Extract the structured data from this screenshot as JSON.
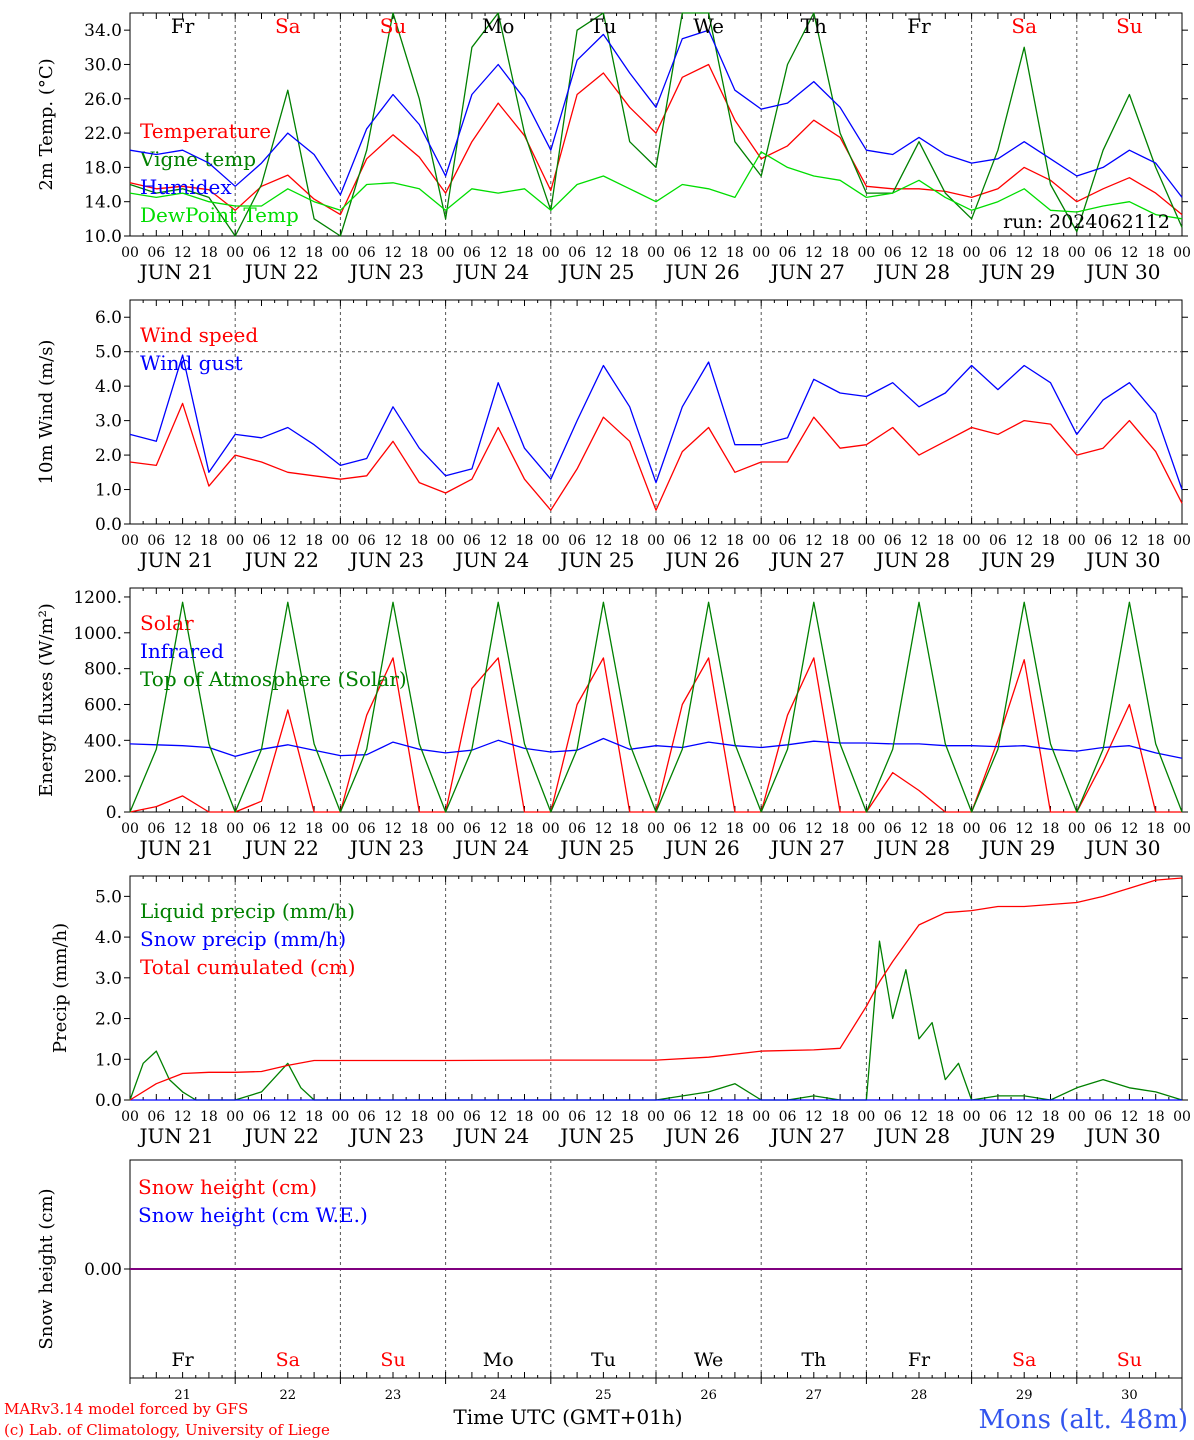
{
  "meta": {
    "run_label": "run: 2024062112",
    "credit_line1": "MARv3.14 model forced by GFS",
    "credit_line2": "(c) Lab. of Climatology, University of Liege",
    "time_axis_label": "Time UTC (GMT+01h)",
    "station": "Mons (alt. 48m)"
  },
  "colors": {
    "red": "#ff0000",
    "green": "#008000",
    "lightgreen": "#00dd00",
    "blue": "#0000ff",
    "purple": "#7f007f",
    "axis": "#000000"
  },
  "days": {
    "names": [
      "Fr",
      "Sa",
      "Su",
      "Mo",
      "Tu",
      "We",
      "Th",
      "Fr",
      "Sa",
      "Su"
    ],
    "weekend": [
      false,
      true,
      true,
      false,
      false,
      false,
      false,
      false,
      true,
      true
    ],
    "dates": [
      "JUN 21",
      "JUN 22",
      "JUN 23",
      "JUN 24",
      "JUN 25",
      "JUN 26",
      "JUN 27",
      "JUN 28",
      "JUN 29",
      "JUN 30"
    ],
    "numbers": [
      "21",
      "22",
      "23",
      "24",
      "25",
      "26",
      "27",
      "28",
      "29",
      "30"
    ],
    "hour_ticks": [
      "00",
      "06",
      "12",
      "18"
    ],
    "final_tick": "00"
  },
  "chart_data": [
    {
      "id": "temperature",
      "type": "line",
      "ylabel": "2m Temp. (°C)",
      "ylim": [
        10.0,
        36.0
      ],
      "yticks": [
        "10.0",
        "14.0",
        "18.0",
        "22.0",
        "26.0",
        "30.0",
        "34.0"
      ],
      "x_unit": "hours since 2024-06-21 00 UTC",
      "series": [
        {
          "name": "Temperature",
          "color": "#ff0000",
          "x": [
            0,
            6,
            12,
            18,
            24,
            30,
            36,
            42,
            48,
            54,
            60,
            66,
            72,
            78,
            84,
            90,
            96,
            102,
            108,
            114,
            120,
            126,
            132,
            138,
            144,
            150,
            156,
            162,
            168,
            174,
            180,
            186,
            192,
            198,
            204,
            210,
            216,
            222,
            228,
            234,
            240
          ],
          "y": [
            16.2,
            15.5,
            15.8,
            15.4,
            13.0,
            15.8,
            17.1,
            14.3,
            12.5,
            19.0,
            21.8,
            19.2,
            15.0,
            21.0,
            25.5,
            21.7,
            15.3,
            26.5,
            29.0,
            25.0,
            22.0,
            28.5,
            30.0,
            23.5,
            19.0,
            20.5,
            23.5,
            21.5,
            15.8,
            15.5,
            15.5,
            15.2,
            14.5,
            15.5,
            18.0,
            16.5,
            14.0,
            15.5,
            16.8,
            15.0,
            12.5
          ]
        },
        {
          "name": "Vigne temp",
          "color": "#008000",
          "x": [
            0,
            6,
            12,
            18,
            24,
            30,
            36,
            42,
            48,
            54,
            60,
            66,
            72,
            78,
            84,
            90,
            96,
            102,
            108,
            114,
            120,
            126,
            132,
            138,
            144,
            150,
            156,
            162,
            168,
            174,
            180,
            186,
            192,
            198,
            204,
            210,
            216,
            222,
            228,
            234,
            240
          ],
          "y": [
            16.0,
            15.0,
            15.5,
            14.5,
            10.0,
            16.0,
            27.0,
            12.0,
            10.0,
            20.0,
            36.0,
            26.0,
            12.0,
            32.0,
            36.0,
            22.0,
            13.0,
            34.0,
            36.0,
            21.0,
            18.0,
            36.0,
            36.0,
            21.0,
            17.0,
            30.0,
            36.0,
            22.0,
            15.0,
            15.0,
            21.0,
            15.0,
            12.0,
            20.0,
            32.0,
            16.0,
            10.5,
            20.0,
            26.5,
            18.0,
            11.0
          ]
        },
        {
          "name": "Humidex",
          "color": "#0000ff",
          "x": [
            0,
            6,
            12,
            18,
            24,
            30,
            36,
            42,
            48,
            54,
            60,
            66,
            72,
            78,
            84,
            90,
            96,
            102,
            108,
            114,
            120,
            126,
            132,
            138,
            144,
            150,
            156,
            162,
            168,
            174,
            180,
            186,
            192,
            198,
            204,
            210,
            216,
            222,
            228,
            234,
            240
          ],
          "y": [
            20.0,
            19.5,
            20.0,
            18.5,
            15.8,
            18.5,
            22.0,
            19.5,
            14.8,
            22.5,
            26.5,
            23.0,
            17.0,
            26.5,
            30.0,
            26.0,
            20.0,
            30.5,
            33.5,
            29.0,
            25.0,
            33.0,
            34.0,
            27.0,
            24.8,
            25.5,
            28.0,
            25.0,
            20.0,
            19.5,
            21.5,
            19.5,
            18.5,
            19.0,
            21.0,
            19.0,
            17.0,
            18.0,
            20.0,
            18.5,
            14.5
          ]
        },
        {
          "name": "DewPoint Temp",
          "color": "#00dd00",
          "x": [
            0,
            6,
            12,
            18,
            24,
            30,
            36,
            42,
            48,
            54,
            60,
            66,
            72,
            78,
            84,
            90,
            96,
            102,
            108,
            114,
            120,
            126,
            132,
            138,
            144,
            150,
            156,
            162,
            168,
            174,
            180,
            186,
            192,
            198,
            204,
            210,
            216,
            222,
            228,
            234,
            240
          ],
          "y": [
            15.0,
            14.5,
            15.0,
            14.0,
            13.5,
            13.5,
            15.5,
            14.0,
            13.0,
            16.0,
            16.2,
            15.5,
            13.0,
            15.5,
            15.0,
            15.5,
            13.0,
            16.0,
            17.0,
            15.5,
            14.0,
            16.0,
            15.5,
            14.5,
            19.8,
            18.0,
            17.0,
            16.5,
            14.5,
            15.0,
            16.5,
            14.5,
            13.0,
            14.0,
            15.5,
            13.0,
            12.8,
            13.5,
            14.0,
            12.5,
            12.0
          ]
        }
      ]
    },
    {
      "id": "wind",
      "type": "line",
      "ylabel": "10m Wind (m/s)",
      "ylim": [
        0.0,
        6.5
      ],
      "yticks": [
        "0.0",
        "1.0",
        "2.0",
        "3.0",
        "4.0",
        "5.0",
        "6.0"
      ],
      "x_unit": "hours since 2024-06-21 00 UTC",
      "series": [
        {
          "name": "Wind speed",
          "color": "#ff0000",
          "x": [
            0,
            6,
            12,
            18,
            24,
            30,
            36,
            42,
            48,
            54,
            60,
            66,
            72,
            78,
            84,
            90,
            96,
            102,
            108,
            114,
            120,
            126,
            132,
            138,
            144,
            150,
            156,
            162,
            168,
            174,
            180,
            186,
            192,
            198,
            204,
            210,
            216,
            222,
            228,
            234,
            240
          ],
          "y": [
            1.8,
            1.7,
            3.5,
            1.1,
            2.0,
            1.8,
            1.5,
            1.4,
            1.3,
            1.4,
            2.4,
            1.2,
            0.9,
            1.3,
            2.8,
            1.3,
            0.4,
            1.6,
            3.1,
            2.4,
            0.4,
            2.1,
            2.8,
            1.5,
            1.8,
            1.8,
            3.1,
            2.2,
            2.3,
            2.8,
            2.0,
            2.4,
            2.8,
            2.6,
            3.0,
            2.9,
            2.0,
            2.2,
            3.0,
            2.1,
            0.6
          ]
        },
        {
          "name": "Wind gust",
          "color": "#0000ff",
          "x": [
            0,
            6,
            12,
            18,
            24,
            30,
            36,
            42,
            48,
            54,
            60,
            66,
            72,
            78,
            84,
            90,
            96,
            102,
            108,
            114,
            120,
            126,
            132,
            138,
            144,
            150,
            156,
            162,
            168,
            174,
            180,
            186,
            192,
            198,
            204,
            210,
            216,
            222,
            228,
            234,
            240
          ],
          "y": [
            2.6,
            2.4,
            4.9,
            1.5,
            2.6,
            2.5,
            2.8,
            2.3,
            1.7,
            1.9,
            3.4,
            2.2,
            1.4,
            1.6,
            4.1,
            2.2,
            1.3,
            3.0,
            4.6,
            3.4,
            1.2,
            3.4,
            4.7,
            2.3,
            2.3,
            2.5,
            4.2,
            3.8,
            3.7,
            4.1,
            3.4,
            3.8,
            4.6,
            3.9,
            4.6,
            4.1,
            2.6,
            3.6,
            4.1,
            3.2,
            1.0
          ]
        }
      ]
    },
    {
      "id": "energy",
      "type": "line",
      "ylabel": "Energy fluxes (W/m²)",
      "ylim": [
        0,
        1250
      ],
      "yticks": [
        "0.",
        "200.",
        "400.",
        "600.",
        "800.",
        "1000.",
        "1200."
      ],
      "x_unit": "hours since 2024-06-21 00 UTC",
      "series": [
        {
          "name": "Solar",
          "color": "#ff0000",
          "x": [
            0,
            6,
            12,
            18,
            24,
            30,
            36,
            42,
            48,
            54,
            60,
            66,
            72,
            78,
            84,
            90,
            96,
            102,
            108,
            114,
            120,
            126,
            132,
            138,
            144,
            150,
            156,
            162,
            168,
            174,
            180,
            186,
            192,
            198,
            204,
            210,
            216,
            222,
            228,
            234,
            240
          ],
          "y": [
            0,
            30,
            90,
            0,
            0,
            60,
            570,
            0,
            0,
            540,
            860,
            0,
            0,
            690,
            860,
            0,
            0,
            600,
            860,
            0,
            0,
            600,
            860,
            0,
            0,
            540,
            860,
            0,
            0,
            220,
            120,
            0,
            0,
            400,
            850,
            0,
            0,
            280,
            600,
            0,
            0
          ]
        },
        {
          "name": "Infrared",
          "color": "#0000ff",
          "x": [
            0,
            6,
            12,
            18,
            24,
            30,
            36,
            42,
            48,
            54,
            60,
            66,
            72,
            78,
            84,
            90,
            96,
            102,
            108,
            114,
            120,
            126,
            132,
            138,
            144,
            150,
            156,
            162,
            168,
            174,
            180,
            186,
            192,
            198,
            204,
            210,
            216,
            222,
            228,
            234,
            240
          ],
          "y": [
            380,
            375,
            370,
            360,
            310,
            350,
            375,
            345,
            315,
            320,
            390,
            350,
            330,
            345,
            400,
            355,
            335,
            345,
            410,
            350,
            370,
            360,
            390,
            370,
            360,
            375,
            395,
            385,
            385,
            380,
            380,
            370,
            370,
            365,
            370,
            350,
            340,
            360,
            370,
            330,
            300
          ]
        },
        {
          "name": "Top of Atmosphere (Solar)",
          "color": "#008000",
          "x": [
            0,
            6,
            12,
            18,
            24,
            30,
            36,
            42,
            48,
            54,
            60,
            66,
            72,
            78,
            84,
            90,
            96,
            102,
            108,
            114,
            120,
            126,
            132,
            138,
            144,
            150,
            156,
            162,
            168,
            174,
            180,
            186,
            192,
            198,
            204,
            210,
            216,
            222,
            228,
            234,
            240
          ],
          "y": [
            0,
            350,
            1170,
            380,
            0,
            350,
            1170,
            380,
            0,
            350,
            1170,
            380,
            0,
            350,
            1170,
            380,
            0,
            350,
            1170,
            380,
            0,
            350,
            1170,
            380,
            0,
            350,
            1170,
            380,
            0,
            350,
            1170,
            380,
            0,
            350,
            1170,
            380,
            0,
            350,
            1170,
            380,
            0
          ]
        }
      ]
    },
    {
      "id": "precip",
      "type": "line",
      "ylabel": "Precip (mm/h)",
      "ylim": [
        0.0,
        5.5
      ],
      "yticks": [
        "0.0",
        "1.0",
        "2.0",
        "3.0",
        "4.0",
        "5.0"
      ],
      "x_unit": "hours since 2024-06-21 00 UTC",
      "series": [
        {
          "name": "Liquid precip (mm/h)",
          "color": "#008000",
          "x": [
            0,
            3,
            6,
            9,
            12,
            15,
            18,
            24,
            30,
            36,
            39,
            42,
            48,
            60,
            72,
            96,
            120,
            132,
            138,
            144,
            150,
            156,
            162,
            168,
            171,
            174,
            177,
            180,
            183,
            186,
            189,
            192,
            198,
            204,
            210,
            216,
            222,
            228,
            234,
            240
          ],
          "y": [
            0,
            0.9,
            1.2,
            0.5,
            0.2,
            0,
            0,
            0,
            0.2,
            0.9,
            0.3,
            0,
            0,
            0,
            0,
            0,
            0,
            0.2,
            0.4,
            0,
            0,
            0.1,
            0,
            0,
            3.9,
            2.0,
            3.2,
            1.5,
            1.9,
            0.5,
            0.9,
            0,
            0.1,
            0.1,
            0,
            0.3,
            0.5,
            0.3,
            0.2,
            0
          ]
        },
        {
          "name": "Snow precip (mm/h)",
          "color": "#0000ff",
          "x": [
            0,
            240
          ],
          "y": [
            0,
            0
          ]
        },
        {
          "name": "Total cumulated (cm)",
          "color": "#ff0000",
          "x": [
            0,
            6,
            12,
            18,
            24,
            30,
            36,
            42,
            48,
            72,
            96,
            120,
            132,
            144,
            156,
            162,
            168,
            171,
            174,
            180,
            186,
            192,
            198,
            204,
            216,
            222,
            228,
            234,
            240
          ],
          "y": [
            0,
            0.4,
            0.65,
            0.68,
            0.68,
            0.7,
            0.85,
            0.97,
            0.97,
            0.97,
            0.98,
            0.98,
            1.05,
            1.2,
            1.23,
            1.27,
            2.3,
            2.9,
            3.4,
            4.3,
            4.6,
            4.65,
            4.75,
            4.75,
            4.85,
            5.0,
            5.2,
            5.4,
            5.45
          ]
        }
      ]
    },
    {
      "id": "snow",
      "type": "line",
      "ylabel": "Snow height (cm)",
      "ylim": [
        -1,
        1
      ],
      "yticks": [
        "0.00"
      ],
      "x_unit": "hours since 2024-06-21 00 UTC",
      "series": [
        {
          "name": "Snow height (cm)",
          "color": "#ff0000",
          "x": [
            0,
            240
          ],
          "y": [
            0,
            0
          ]
        },
        {
          "name": "Snow height (cm W.E.)",
          "color": "#0000ff",
          "x": [
            0,
            240
          ],
          "y": [
            0,
            0
          ]
        }
      ]
    }
  ]
}
